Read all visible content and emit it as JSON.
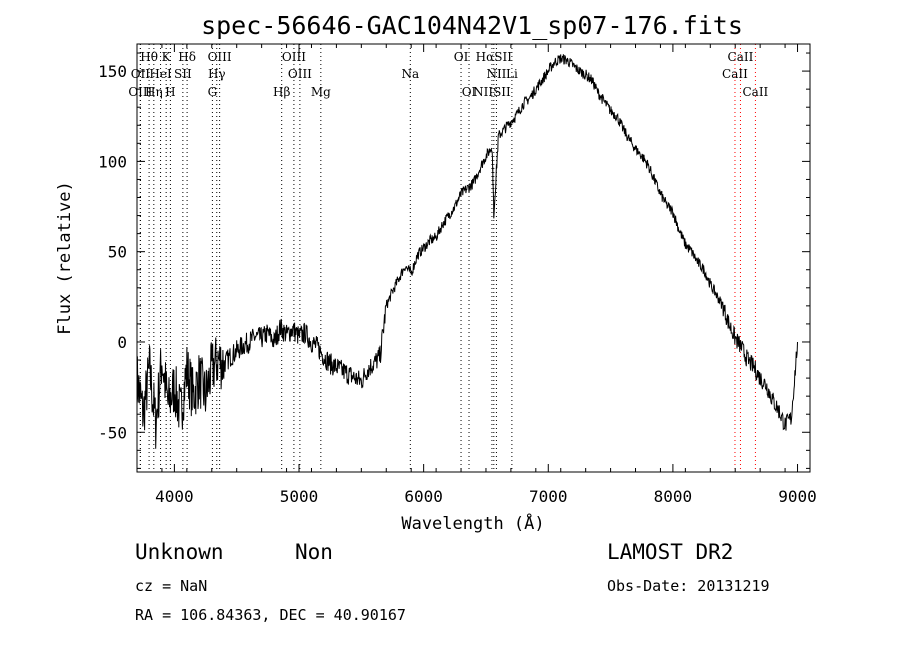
{
  "chart_data": {
    "type": "line",
    "title": "spec-56646-GAC104N42V1_sp07-176.fits",
    "xlabel": "Wavelength (Å)",
    "ylabel": "Flux (relative)",
    "xlim": [
      3700,
      9100
    ],
    "ylim": [
      -72,
      165
    ],
    "x_ticks": [
      4000,
      5000,
      6000,
      7000,
      8000,
      9000
    ],
    "y_ticks": [
      -50,
      0,
      50,
      100,
      150
    ],
    "grid": false,
    "series": [
      {
        "x": [
          3700,
          3750,
          3800,
          3850,
          3900,
          3950,
          4000,
          4050,
          4100,
          4150,
          4200,
          4250,
          4300,
          4350,
          4400,
          4450,
          4500,
          4550,
          4600,
          4650,
          4700,
          4750,
          4800,
          4850,
          4900,
          4950,
          5000,
          5050,
          5100,
          5150,
          5200,
          5250,
          5300,
          5350,
          5400,
          5450,
          5500,
          5550,
          5600,
          5650,
          5700,
          5750,
          5800,
          5850,
          5900,
          5950,
          6000,
          6050,
          6100,
          6150,
          6200,
          6250,
          6300,
          6350,
          6400,
          6450,
          6500,
          6550,
          6563,
          6600,
          6650,
          6700,
          6750,
          6800,
          6850,
          6900,
          6950,
          7000,
          7050,
          7100,
          7150,
          7200,
          7250,
          7300,
          7350,
          7400,
          7450,
          7500,
          7550,
          7600,
          7650,
          7700,
          7750,
          7800,
          7850,
          7900,
          7950,
          8000,
          8050,
          8100,
          8150,
          8200,
          8250,
          8300,
          8350,
          8400,
          8450,
          8500,
          8550,
          8600,
          8650,
          8700,
          8750,
          8800,
          8850,
          8900,
          8950,
          9000
        ],
        "y": [
          -20,
          -40,
          -15,
          -45,
          -10,
          -35,
          -25,
          -40,
          -15,
          -30,
          -20,
          -30,
          -15,
          -10,
          -12,
          -8,
          -5,
          -2,
          0,
          3,
          2,
          5,
          0,
          8,
          4,
          7,
          3,
          5,
          0,
          -3,
          -8,
          -12,
          -14,
          -16,
          -18,
          -20,
          -22,
          -15,
          -12,
          -8,
          20,
          28,
          35,
          42,
          38,
          48,
          52,
          56,
          58,
          65,
          70,
          75,
          82,
          85,
          88,
          96,
          103,
          108,
          70,
          114,
          118,
          122,
          126,
          132,
          135,
          140,
          145,
          150,
          155,
          157,
          156,
          153,
          150,
          148,
          145,
          138,
          133,
          128,
          125,
          118,
          112,
          107,
          103,
          98,
          90,
          82,
          76,
          72,
          62,
          54,
          50,
          44,
          40,
          32,
          26,
          20,
          10,
          2,
          -3,
          -10,
          -14,
          -20,
          -24,
          -32,
          -38,
          -46,
          -42,
          0
        ]
      }
    ],
    "spectral_lines": [
      {
        "label": "Hθ",
        "x": 3797,
        "color": "#000000",
        "row": 1
      },
      {
        "label": "K",
        "x": 3934,
        "color": "#000000",
        "row": 1
      },
      {
        "label": "Hδ",
        "x": 4102,
        "color": "#000000",
        "row": 1
      },
      {
        "label": "OIII",
        "x": 4363,
        "color": "#000000",
        "row": 1
      },
      {
        "label": "OIII",
        "x": 4959,
        "color": "#000000",
        "row": 1
      },
      {
        "label": "OI",
        "x": 6300,
        "color": "#000000",
        "row": 1
      },
      {
        "label": "HαSII",
        "x": 6563,
        "color": "#000000",
        "row": 1
      },
      {
        "label": "CaII",
        "x": 8542,
        "color": "#ff0000",
        "row": 1
      },
      {
        "label": "OII",
        "x": 3727,
        "color": "#000000",
        "row": 2
      },
      {
        "label": "HeI",
        "x": 3889,
        "color": "#000000",
        "row": 2
      },
      {
        "label": "SII",
        "x": 4068,
        "color": "#000000",
        "row": 2
      },
      {
        "label": "Hγ",
        "x": 4340,
        "color": "#000000",
        "row": 2
      },
      {
        "label": "OIII",
        "x": 5007,
        "color": "#000000",
        "row": 2
      },
      {
        "label": "Na",
        "x": 5893,
        "color": "#000000",
        "row": 2
      },
      {
        "label": "NII",
        "x": 6584,
        "color": "#000000",
        "row": 2
      },
      {
        "label": "Li",
        "x": 6708,
        "color": "#000000",
        "row": 2
      },
      {
        "label": "CaII",
        "x": 8498,
        "color": "#ff0000",
        "row": 2
      },
      {
        "label": "OIII",
        "x": 3727,
        "color": "#000000",
        "row": 3
      },
      {
        "label": "Hη",
        "x": 3835,
        "color": "#000000",
        "row": 3
      },
      {
        "label": "H",
        "x": 3968,
        "color": "#000000",
        "row": 3
      },
      {
        "label": "G",
        "x": 4305,
        "color": "#000000",
        "row": 3
      },
      {
        "label": "Hβ",
        "x": 4861,
        "color": "#000000",
        "row": 3
      },
      {
        "label": "Mg",
        "x": 5175,
        "color": "#000000",
        "row": 3
      },
      {
        "label": "OI",
        "x": 6364,
        "color": "#000000",
        "row": 3
      },
      {
        "label": "NIISII",
        "x": 6548,
        "color": "#000000",
        "row": 3
      },
      {
        "label": "CaII",
        "x": 8662,
        "color": "#ff0000",
        "row": 3
      }
    ]
  },
  "info": {
    "class": "Unknown",
    "subclass": "Non",
    "survey": "LAMOST DR2",
    "cz": "cz = NaN",
    "obs_date": "Obs-Date: 20131219",
    "coords": "RA = 106.84363, DEC =  40.90167"
  }
}
